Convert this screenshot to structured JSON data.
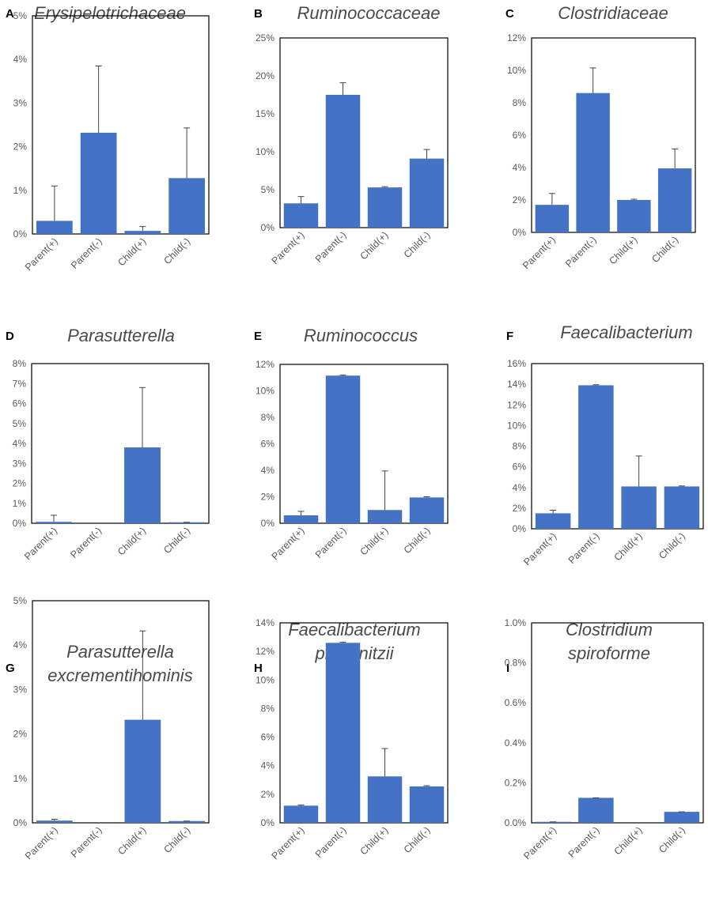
{
  "chart_data": [
    {
      "panel": "A",
      "title": [
        "Erysipelotrichaceae"
      ],
      "type": "bar",
      "categories": [
        "Parent(+)",
        "Parent(-)",
        "Child(+)",
        "Child(-)"
      ],
      "values": [
        0.3,
        2.32,
        0.07,
        1.28
      ],
      "errors": [
        0.8,
        1.53,
        0.1,
        1.15
      ],
      "ylim": [
        0,
        5
      ],
      "yticks": [
        0,
        1,
        2,
        3,
        4,
        5
      ],
      "ytick_labels": [
        "0%",
        "1%",
        "2%",
        "3%",
        "4%",
        "5%"
      ],
      "color": "#4472c4"
    },
    {
      "panel": "B",
      "title": [
        "Ruminococcaceae"
      ],
      "type": "bar",
      "categories": [
        "Parent(+)",
        "Parent(-)",
        "Child(+)",
        "Child(-)"
      ],
      "values": [
        3.2,
        17.5,
        5.3,
        9.1
      ],
      "errors": [
        0.9,
        1.6,
        0.1,
        1.2
      ],
      "ylim": [
        0,
        25
      ],
      "yticks": [
        0,
        5,
        10,
        15,
        20,
        25
      ],
      "ytick_labels": [
        "0%",
        "5%",
        "10%",
        "15%",
        "20%",
        "25%"
      ],
      "color": "#4472c4"
    },
    {
      "panel": "C",
      "title": [
        "Clostridiaceae"
      ],
      "type": "bar",
      "categories": [
        "Parent(+)",
        "Parent(-)",
        "Child(+)",
        "Child(-)"
      ],
      "values": [
        1.7,
        8.6,
        2.0,
        3.95
      ],
      "errors": [
        0.7,
        1.55,
        0.05,
        1.2
      ],
      "ylim": [
        0,
        12
      ],
      "yticks": [
        0,
        2,
        4,
        6,
        8,
        10,
        12
      ],
      "ytick_labels": [
        "0%",
        "2%",
        "4%",
        "6%",
        "8%",
        "10%",
        "12%"
      ],
      "color": "#4472c4"
    },
    {
      "panel": "D",
      "title": [
        "Parasutterella"
      ],
      "type": "bar",
      "categories": [
        "Parent(+)",
        "Parent(-)",
        "Child(+)",
        "Child(-)"
      ],
      "values": [
        0.07,
        0,
        3.8,
        0.05
      ],
      "errors": [
        0.33,
        0,
        3.0,
        0
      ],
      "ylim": [
        0,
        8
      ],
      "yticks": [
        0,
        1,
        2,
        3,
        4,
        5,
        6,
        7,
        8
      ],
      "ytick_labels": [
        "0%",
        "1%",
        "2%",
        "3%",
        "4%",
        "5%",
        "6%",
        "7%",
        "8%"
      ],
      "color": "#4472c4"
    },
    {
      "panel": "E",
      "title": [
        "Ruminococcus"
      ],
      "type": "bar",
      "categories": [
        "Parent(+)",
        "Parent(-)",
        "Child(+)",
        "Child(-)"
      ],
      "values": [
        0.6,
        11.15,
        1.0,
        1.95
      ],
      "errors": [
        0.3,
        0.05,
        2.95,
        0.05
      ],
      "ylim": [
        0,
        12
      ],
      "yticks": [
        0,
        2,
        4,
        6,
        8,
        10,
        12
      ],
      "ytick_labels": [
        "0%",
        "2%",
        "4%",
        "6%",
        "8%",
        "10%",
        "12%"
      ],
      "color": "#4472c4"
    },
    {
      "panel": "F",
      "title": [
        "Faecalibacterium"
      ],
      "type": "bar",
      "categories": [
        "Parent(+)",
        "Parent(-)",
        "Child(+)",
        "Child(-)"
      ],
      "values": [
        1.5,
        13.9,
        4.1,
        4.1
      ],
      "errors": [
        0.3,
        0.05,
        2.95,
        0.05
      ],
      "ylim": [
        0,
        16
      ],
      "yticks": [
        0,
        2,
        4,
        6,
        8,
        10,
        12,
        14,
        16
      ],
      "ytick_labels": [
        "0%",
        "2%",
        "4%",
        "6%",
        "8%",
        "10%",
        "12%",
        "14%",
        "16%"
      ],
      "color": "#4472c4"
    },
    {
      "panel": "G",
      "title": [
        "Parasutterella",
        "excrementihominis"
      ],
      "type": "bar",
      "categories": [
        "Parent(+)",
        "Parent(-)",
        "Child(+)",
        "Child(-)"
      ],
      "values": [
        0.05,
        0,
        2.32,
        0.04
      ],
      "errors": [
        0.03,
        0,
        2.0,
        0
      ],
      "ylim": [
        0,
        5
      ],
      "yticks": [
        0,
        1,
        2,
        3,
        4,
        5
      ],
      "ytick_labels": [
        "0%",
        "1%",
        "2%",
        "3%",
        "4%",
        "5%"
      ],
      "color": "#4472c4"
    },
    {
      "panel": "H",
      "title": [
        "Faecalibacterium",
        "prausnitzii"
      ],
      "type": "bar",
      "categories": [
        "Parent(+)",
        "Parent(-)",
        "Child(+)",
        "Child(-)"
      ],
      "values": [
        1.2,
        12.6,
        3.25,
        2.55
      ],
      "errors": [
        0.05,
        0.05,
        1.95,
        0.05
      ],
      "ylim": [
        0,
        14
      ],
      "yticks": [
        0,
        2,
        4,
        6,
        8,
        10,
        12,
        14
      ],
      "ytick_labels": [
        "0%",
        "2%",
        "4%",
        "6%",
        "8%",
        "10%",
        "12%",
        "14%"
      ],
      "color": "#4472c4"
    },
    {
      "panel": "I",
      "title": [
        "Clostridium",
        "spiroforme"
      ],
      "type": "bar",
      "categories": [
        "Parent(+)",
        "Parent(-)",
        "Child(+)",
        "Child(-)"
      ],
      "values": [
        0.005,
        0.125,
        0,
        0.055
      ],
      "errors": [
        0,
        0,
        0,
        0
      ],
      "ylim": [
        0,
        1.0
      ],
      "yticks": [
        0,
        0.2,
        0.4,
        0.6,
        0.8,
        1.0
      ],
      "ytick_labels": [
        "0.0%",
        "0.2%",
        "0.4%",
        "0.6%",
        "0.8%",
        "1.0%"
      ],
      "color": "#4472c4"
    }
  ]
}
